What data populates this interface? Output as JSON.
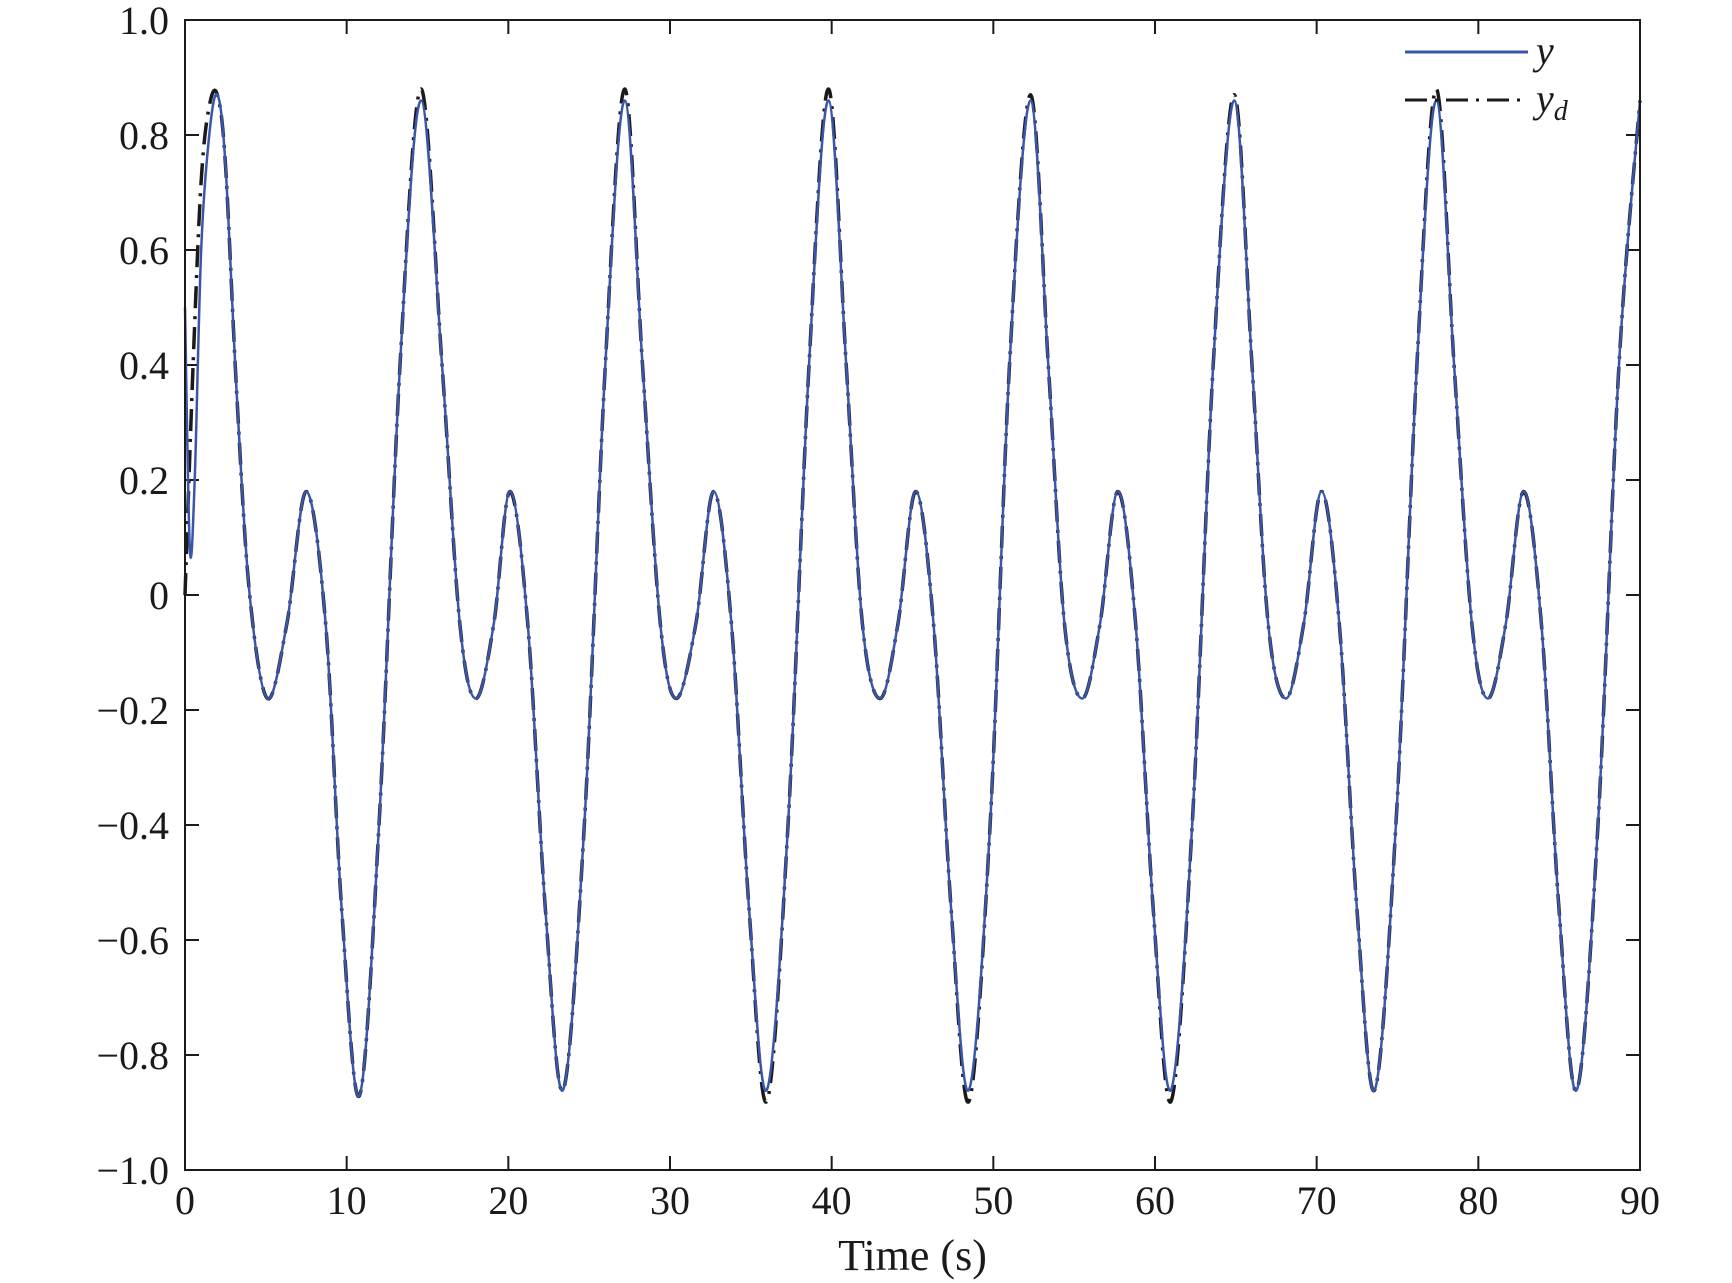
{
  "chart_data": {
    "type": "line",
    "xlabel": "Time (s)",
    "ylabel": "",
    "xlim": [
      0,
      90
    ],
    "ylim": [
      -1.0,
      1.0
    ],
    "x_ticks": [
      "0",
      "10",
      "20",
      "30",
      "40",
      "50",
      "60",
      "70",
      "80",
      "90"
    ],
    "y_ticks": [
      "1.0",
      "0.8",
      "0.6",
      "0.4",
      "0.2",
      "0",
      "−0.2",
      "−0.4",
      "−0.6",
      "−0.8",
      "−1.0"
    ],
    "grid": false,
    "legend_position": "top-right",
    "legend": {
      "y_label": "y",
      "yd_label": "y",
      "yd_subscript": "d"
    },
    "series": [
      {
        "name": "y",
        "color": "#3a56a8",
        "style": "solid",
        "x": [
          0,
          0.3,
          0.6,
          1.0,
          1.5,
          2.0,
          2.5,
          3.2,
          4.0,
          5.1,
          6.3,
          7.5,
          8.7,
          9.7,
          10.8,
          12.0,
          13.3,
          14.6,
          15.9,
          17.0,
          18.0,
          19.1,
          20.1,
          21.2,
          22.3,
          23.4,
          24.7,
          26.0,
          27.2,
          28.3,
          29.4,
          30.4,
          31.6,
          32.7,
          33.8,
          34.9,
          36.0,
          37.3,
          38.6,
          39.8,
          40.9,
          41.9,
          43.0,
          44.1,
          45.2,
          46.3,
          47.4,
          48.5,
          49.8,
          51.0,
          52.3,
          53.4,
          54.4,
          55.5,
          56.6,
          57.7,
          58.8,
          59.9,
          61.0,
          62.3,
          63.6,
          64.9,
          66.0,
          67.0,
          68.1,
          69.2,
          70.3,
          71.4,
          72.5,
          73.6,
          74.9,
          76.2,
          77.4,
          78.5,
          79.6,
          80.6,
          81.7,
          82.8,
          83.9,
          85.0,
          86.1,
          87.4,
          88.7,
          90.0
        ],
        "values": [
          0.5,
          0.08,
          0.2,
          0.6,
          0.8,
          0.87,
          0.75,
          0.35,
          0.0,
          -0.18,
          -0.05,
          0.18,
          -0.05,
          -0.55,
          -0.87,
          -0.4,
          0.4,
          0.86,
          0.4,
          -0.05,
          -0.18,
          -0.05,
          0.18,
          -0.05,
          -0.55,
          -0.86,
          -0.4,
          0.4,
          0.86,
          0.4,
          -0.05,
          -0.18,
          -0.05,
          0.18,
          -0.05,
          -0.55,
          -0.86,
          -0.4,
          0.4,
          0.86,
          0.4,
          -0.05,
          -0.18,
          -0.05,
          0.18,
          -0.05,
          -0.55,
          -0.86,
          -0.4,
          0.4,
          0.86,
          0.4,
          -0.05,
          -0.18,
          -0.05,
          0.18,
          -0.05,
          -0.55,
          -0.86,
          -0.4,
          0.4,
          0.86,
          0.4,
          -0.05,
          -0.18,
          -0.05,
          0.18,
          -0.05,
          -0.55,
          -0.86,
          -0.4,
          0.4,
          0.86,
          0.4,
          -0.05,
          -0.18,
          -0.05,
          0.18,
          -0.05,
          -0.55,
          -0.86,
          -0.4,
          0.4,
          0.86
        ]
      },
      {
        "name": "y_d",
        "color": "#1a1a1a",
        "style": "dash-dot",
        "x": [
          0,
          0.5,
          1.0,
          1.5,
          2.0,
          2.5,
          3.2,
          4.0,
          5.1,
          6.3,
          7.5,
          8.7,
          9.7,
          10.8,
          12.0,
          13.3,
          14.6,
          15.9,
          17.0,
          18.0,
          19.1,
          20.1,
          21.2,
          22.3,
          23.4,
          24.7,
          26.0,
          27.2,
          28.3,
          29.4,
          30.4,
          31.6,
          32.7,
          33.8,
          34.9,
          36.0,
          37.3,
          38.6,
          39.8,
          40.9,
          41.9,
          43.0,
          44.1,
          45.2,
          46.3,
          47.4,
          48.5,
          49.8,
          51.0,
          52.3,
          53.4,
          54.4,
          55.5,
          56.6,
          57.7,
          58.8,
          59.9,
          61.0,
          62.3,
          63.6,
          64.9,
          66.0,
          67.0,
          68.1,
          69.2,
          70.3,
          71.4,
          72.5,
          73.6,
          74.9,
          76.2,
          77.4,
          78.5,
          79.6,
          80.6,
          81.7,
          82.8,
          83.9,
          85.0,
          86.1,
          87.4,
          88.7,
          90.0
        ],
        "values": [
          0.0,
          0.4,
          0.72,
          0.85,
          0.87,
          0.75,
          0.35,
          0.0,
          -0.18,
          -0.05,
          0.18,
          -0.05,
          -0.55,
          -0.87,
          -0.4,
          0.4,
          0.88,
          0.4,
          -0.05,
          -0.18,
          -0.05,
          0.18,
          -0.05,
          -0.55,
          -0.86,
          -0.4,
          0.4,
          0.88,
          0.4,
          -0.05,
          -0.18,
          -0.05,
          0.18,
          -0.05,
          -0.55,
          -0.88,
          -0.4,
          0.4,
          0.88,
          0.4,
          -0.05,
          -0.18,
          -0.05,
          0.18,
          -0.05,
          -0.55,
          -0.88,
          -0.4,
          0.4,
          0.87,
          0.4,
          -0.05,
          -0.18,
          -0.05,
          0.18,
          -0.05,
          -0.55,
          -0.88,
          -0.4,
          0.4,
          0.87,
          0.4,
          -0.05,
          -0.18,
          -0.05,
          0.18,
          -0.05,
          -0.55,
          -0.86,
          -0.4,
          0.4,
          0.88,
          0.4,
          -0.05,
          -0.18,
          -0.05,
          0.18,
          -0.05,
          -0.55,
          -0.86,
          -0.4,
          0.4,
          0.86
        ]
      }
    ]
  }
}
